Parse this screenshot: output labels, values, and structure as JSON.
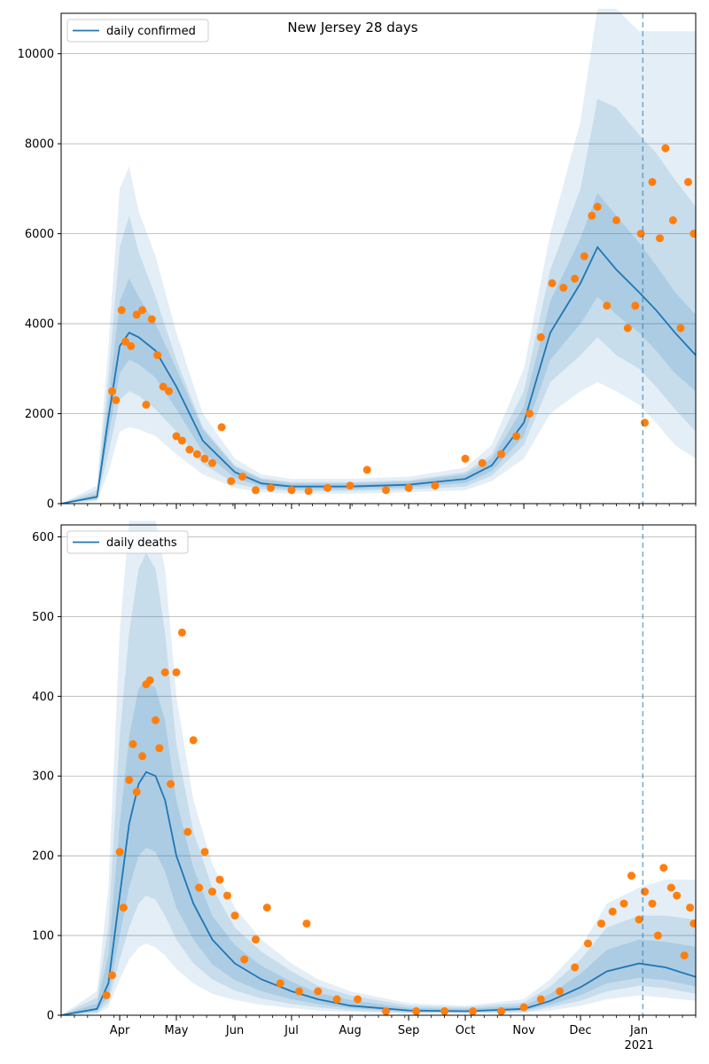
{
  "figure": {
    "title": "New Jersey 28 days"
  },
  "chart_data": [
    {
      "type": "line",
      "title": "New Jersey 28 days",
      "xlabel": "",
      "ylabel": "",
      "xlim": [
        "2020-03-01",
        "2021-01-31"
      ],
      "ylim": [
        0,
        10900
      ],
      "yticks": [
        0,
        2000,
        4000,
        6000,
        8000,
        10000
      ],
      "xticks": [
        {
          "date": "2020-04-01",
          "label": "Apr"
        },
        {
          "date": "2020-05-01",
          "label": "May"
        },
        {
          "date": "2020-06-01",
          "label": "Jun"
        },
        {
          "date": "2020-07-01",
          "label": "Jul"
        },
        {
          "date": "2020-08-01",
          "label": "Aug"
        },
        {
          "date": "2020-09-01",
          "label": "Sep"
        },
        {
          "date": "2020-10-01",
          "label": "Oct"
        },
        {
          "date": "2020-11-01",
          "label": "Nov"
        },
        {
          "date": "2020-12-01",
          "label": "Dec"
        },
        {
          "date": "2021-01-01",
          "label": "Jan"
        }
      ],
      "year_label": "",
      "grid": "horizontal",
      "legend_position": "top-left",
      "vline_date": "2021-01-03",
      "series": [
        {
          "name": "daily confirmed",
          "color": "#1f77b4",
          "x": [
            "2020-03-01",
            "2020-03-20",
            "2020-03-26",
            "2020-04-01",
            "2020-04-06",
            "2020-04-11",
            "2020-04-20",
            "2020-05-01",
            "2020-05-15",
            "2020-06-01",
            "2020-06-15",
            "2020-07-01",
            "2020-08-01",
            "2020-09-01",
            "2020-10-01",
            "2020-10-15",
            "2020-11-01",
            "2020-11-15",
            "2020-12-01",
            "2020-12-10",
            "2020-12-20",
            "2021-01-01",
            "2021-01-10",
            "2021-01-20",
            "2021-01-31"
          ],
          "y": [
            0,
            150,
            1900,
            3500,
            3800,
            3700,
            3400,
            2600,
            1400,
            700,
            450,
            380,
            380,
            420,
            550,
            850,
            1800,
            3800,
            4900,
            5700,
            5200,
            4700,
            4300,
            3800,
            3300
          ]
        },
        {
          "name": "",
          "color": "#ff7f0e",
          "marker": "dot",
          "x": [
            "2020-03-28",
            "2020-03-30",
            "2020-04-02",
            "2020-04-04",
            "2020-04-07",
            "2020-04-10",
            "2020-04-13",
            "2020-04-15",
            "2020-04-18",
            "2020-04-21",
            "2020-04-24",
            "2020-04-27",
            "2020-05-01",
            "2020-05-04",
            "2020-05-08",
            "2020-05-12",
            "2020-05-16",
            "2020-05-20",
            "2020-05-25",
            "2020-05-30",
            "2020-06-05",
            "2020-06-12",
            "2020-06-20",
            "2020-07-01",
            "2020-07-10",
            "2020-07-20",
            "2020-08-01",
            "2020-08-10",
            "2020-08-20",
            "2020-09-01",
            "2020-09-15",
            "2020-10-01",
            "2020-10-10",
            "2020-10-20",
            "2020-10-28",
            "2020-11-04",
            "2020-11-10",
            "2020-11-16",
            "2020-11-22",
            "2020-11-28",
            "2020-12-03",
            "2020-12-07",
            "2020-12-10",
            "2020-12-15",
            "2020-12-20",
            "2020-12-26",
            "2020-12-30",
            "2021-01-02",
            "2021-01-04",
            "2021-01-08",
            "2021-01-12",
            "2021-01-15",
            "2021-01-19",
            "2021-01-23",
            "2021-01-27",
            "2021-01-30"
          ],
          "y": [
            2500,
            2300,
            4300,
            3600,
            3500,
            4200,
            4300,
            2200,
            4100,
            3300,
            2600,
            2500,
            1500,
            1400,
            1200,
            1100,
            1000,
            900,
            1700,
            500,
            600,
            300,
            350,
            300,
            280,
            350,
            400,
            750,
            300,
            350,
            400,
            1000,
            900,
            1100,
            1500,
            2000,
            3700,
            4900,
            4800,
            5000,
            5500,
            6400,
            6600,
            4400,
            6300,
            3900,
            4400,
            6000,
            1800,
            7150,
            5900,
            7900,
            6300,
            3900,
            7150,
            6000
          ]
        }
      ],
      "bands": [
        {
          "label": "",
          "opacity": 0.12,
          "upper": [
            0,
            400,
            3500,
            7000,
            7500,
            6500,
            5500,
            3800,
            2000,
            1000,
            650,
            550,
            550,
            600,
            800,
            1300,
            3000,
            6000,
            8500,
            11000,
            11000,
            10500,
            10500,
            10500,
            10500
          ],
          "lower": [
            0,
            50,
            700,
            1600,
            1700,
            1650,
            1500,
            1100,
            650,
            350,
            250,
            220,
            220,
            250,
            300,
            500,
            1000,
            2000,
            2500,
            2700,
            2500,
            2200,
            1800,
            1300,
            1000
          ]
        },
        {
          "label": "",
          "opacity": 0.14,
          "upper": [
            0,
            300,
            2800,
            5700,
            6400,
            5600,
            4600,
            3200,
            1700,
            850,
            570,
            480,
            480,
            520,
            700,
            1100,
            2500,
            5200,
            7000,
            9000,
            8800,
            8200,
            7800,
            7200,
            6600
          ],
          "lower": [
            0,
            80,
            1100,
            2300,
            2500,
            2400,
            2100,
            1600,
            880,
            450,
            320,
            280,
            280,
            310,
            380,
            620,
            1300,
            2700,
            3300,
            3700,
            3300,
            3000,
            2600,
            2100,
            1600
          ]
        },
        {
          "label": "",
          "opacity": 0.16,
          "upper": [
            0,
            220,
            2300,
            4500,
            5000,
            4600,
            4000,
            3000,
            1650,
            820,
            540,
            450,
            450,
            490,
            650,
            1000,
            2150,
            4500,
            5900,
            6900,
            6400,
            5800,
            5300,
            4700,
            4200
          ],
          "lower": [
            0,
            100,
            1500,
            2900,
            3200,
            3100,
            2800,
            2100,
            1150,
            580,
            380,
            320,
            320,
            360,
            460,
            720,
            1500,
            3200,
            4000,
            4600,
            4200,
            3800,
            3400,
            2900,
            2500
          ]
        }
      ]
    },
    {
      "type": "line",
      "title": "",
      "xlabel": "",
      "ylabel": "",
      "xlim": [
        "2020-03-01",
        "2021-01-31"
      ],
      "ylim": [
        0,
        615
      ],
      "yticks": [
        0,
        100,
        200,
        300,
        400,
        500,
        600
      ],
      "xticks": [
        {
          "date": "2020-04-01",
          "label": "Apr"
        },
        {
          "date": "2020-05-01",
          "label": "May"
        },
        {
          "date": "2020-06-01",
          "label": "Jun"
        },
        {
          "date": "2020-07-01",
          "label": "Jul"
        },
        {
          "date": "2020-08-01",
          "label": "Aug"
        },
        {
          "date": "2020-09-01",
          "label": "Sep"
        },
        {
          "date": "2020-10-01",
          "label": "Oct"
        },
        {
          "date": "2020-11-01",
          "label": "Nov"
        },
        {
          "date": "2020-12-01",
          "label": "Dec"
        },
        {
          "date": "2021-01-01",
          "label": "Jan"
        }
      ],
      "year_label": "2021",
      "grid": "horizontal",
      "legend_position": "top-left",
      "vline_date": "2021-01-03",
      "series": [
        {
          "name": "daily deaths",
          "color": "#1f77b4",
          "x": [
            "2020-03-01",
            "2020-03-20",
            "2020-03-26",
            "2020-04-01",
            "2020-04-06",
            "2020-04-11",
            "2020-04-15",
            "2020-04-20",
            "2020-04-25",
            "2020-05-01",
            "2020-05-10",
            "2020-05-20",
            "2020-06-01",
            "2020-06-15",
            "2020-07-01",
            "2020-07-15",
            "2020-08-01",
            "2020-09-01",
            "2020-10-01",
            "2020-11-01",
            "2020-11-15",
            "2020-12-01",
            "2020-12-15",
            "2021-01-01",
            "2021-01-15",
            "2021-01-31"
          ],
          "y": [
            0,
            8,
            40,
            150,
            240,
            290,
            305,
            300,
            270,
            200,
            140,
            95,
            65,
            45,
            30,
            20,
            12,
            6,
            5,
            8,
            18,
            35,
            55,
            65,
            60,
            48
          ]
        },
        {
          "name": "",
          "color": "#ff7f0e",
          "marker": "dot",
          "x": [
            "2020-03-25",
            "2020-03-28",
            "2020-04-01",
            "2020-04-03",
            "2020-04-06",
            "2020-04-08",
            "2020-04-10",
            "2020-04-13",
            "2020-04-15",
            "2020-04-17",
            "2020-04-20",
            "2020-04-22",
            "2020-04-25",
            "2020-04-28",
            "2020-05-01",
            "2020-05-04",
            "2020-05-07",
            "2020-05-10",
            "2020-05-13",
            "2020-05-16",
            "2020-05-20",
            "2020-05-24",
            "2020-05-28",
            "2020-06-01",
            "2020-06-06",
            "2020-06-12",
            "2020-06-18",
            "2020-06-25",
            "2020-07-05",
            "2020-07-09",
            "2020-07-15",
            "2020-07-25",
            "2020-08-05",
            "2020-08-20",
            "2020-09-05",
            "2020-09-20",
            "2020-10-05",
            "2020-10-20",
            "2020-11-01",
            "2020-11-10",
            "2020-11-20",
            "2020-11-28",
            "2020-12-05",
            "2020-12-12",
            "2020-12-18",
            "2020-12-24",
            "2020-12-28",
            "2021-01-01",
            "2021-01-04",
            "2021-01-08",
            "2021-01-11",
            "2021-01-14",
            "2021-01-18",
            "2021-01-21",
            "2021-01-25",
            "2021-01-28",
            "2021-01-30"
          ],
          "y": [
            25,
            50,
            205,
            135,
            295,
            340,
            280,
            325,
            415,
            420,
            370,
            335,
            430,
            290,
            430,
            480,
            230,
            345,
            160,
            205,
            155,
            170,
            150,
            125,
            70,
            95,
            135,
            40,
            30,
            115,
            30,
            20,
            20,
            5,
            5,
            5,
            5,
            5,
            10,
            20,
            30,
            60,
            90,
            115,
            130,
            140,
            175,
            120,
            155,
            140,
            100,
            185,
            160,
            150,
            75,
            135,
            115
          ]
        }
      ],
      "bands": [
        {
          "label": "",
          "opacity": 0.12,
          "upper": [
            0,
            30,
            160,
            480,
            620,
            620,
            620,
            620,
            560,
            400,
            270,
            190,
            135,
            95,
            65,
            45,
            30,
            15,
            12,
            20,
            45,
            85,
            140,
            160,
            170,
            170
          ],
          "lower": [
            0,
            2,
            10,
            45,
            70,
            85,
            90,
            85,
            75,
            58,
            40,
            27,
            19,
            13,
            9,
            6,
            4,
            2,
            2,
            3,
            6,
            12,
            20,
            25,
            22,
            18
          ]
        },
        {
          "label": "",
          "opacity": 0.14,
          "upper": [
            0,
            22,
            110,
            350,
            480,
            560,
            580,
            560,
            480,
            340,
            230,
            160,
            110,
            80,
            55,
            37,
            25,
            12,
            10,
            16,
            36,
            70,
            110,
            125,
            125,
            120
          ],
          "lower": [
            0,
            3,
            16,
            70,
            110,
            140,
            150,
            145,
            125,
            95,
            65,
            45,
            31,
            21,
            14,
            10,
            6,
            3,
            3,
            4,
            10,
            18,
            30,
            37,
            34,
            27
          ]
        },
        {
          "label": "",
          "opacity": 0.16,
          "upper": [
            0,
            15,
            75,
            240,
            350,
            410,
            420,
            410,
            370,
            270,
            185,
            125,
            88,
            62,
            42,
            28,
            19,
            9,
            8,
            12,
            27,
            52,
            82,
            95,
            92,
            86
          ],
          "lower": [
            0,
            5,
            24,
            100,
            160,
            200,
            210,
            205,
            180,
            135,
            95,
            64,
            44,
            30,
            20,
            14,
            9,
            4,
            4,
            6,
            13,
            25,
            40,
            47,
            44,
            36
          ]
        }
      ]
    }
  ]
}
